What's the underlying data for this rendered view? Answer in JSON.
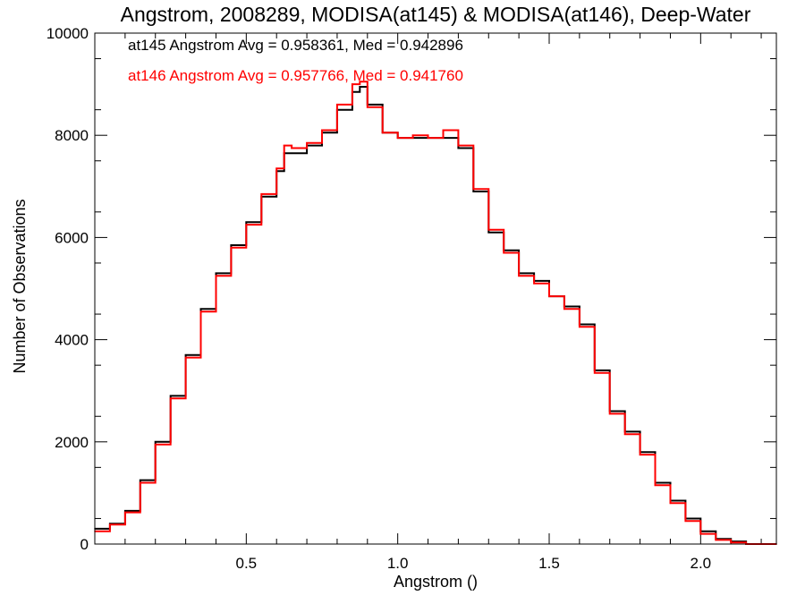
{
  "chart_data": {
    "type": "line",
    "step": true,
    "title": "Angstrom, 2008289, MODISA(at145) & MODISA(at146), Deep-Water",
    "xlabel": "Angstrom ()",
    "ylabel": "Number of Observations",
    "xlim": [
      0.0,
      2.25
    ],
    "ylim": [
      0,
      10000
    ],
    "x_ticks": [
      0.5,
      1.0,
      1.5,
      2.0
    ],
    "x_tick_labels": [
      "0.5",
      "1.0",
      "1.5",
      "2.0"
    ],
    "y_ticks": [
      0,
      2000,
      4000,
      6000,
      8000,
      10000
    ],
    "y_tick_labels": [
      "0",
      "2000",
      "4000",
      "6000",
      "8000",
      "10000"
    ],
    "grid": false,
    "annotations": [
      {
        "text": "at145 Angstrom Avg = 0.958361, Med = 0.942896",
        "color": "#000000"
      },
      {
        "text": "at146 Angstrom Avg = 0.957766, Med = 0.941760",
        "color": "#ff0000"
      }
    ],
    "series": [
      {
        "color": "#000000",
        "x": [
          0.0,
          0.05,
          0.1,
          0.15,
          0.2,
          0.25,
          0.3,
          0.35,
          0.4,
          0.45,
          0.5,
          0.55,
          0.6,
          0.625,
          0.65,
          0.7,
          0.75,
          0.8,
          0.85,
          0.875,
          0.9,
          0.95,
          1.0,
          1.05,
          1.1,
          1.15,
          1.2,
          1.25,
          1.3,
          1.35,
          1.4,
          1.45,
          1.5,
          1.55,
          1.6,
          1.65,
          1.7,
          1.75,
          1.8,
          1.85,
          1.9,
          1.95,
          2.0,
          2.05,
          2.1,
          2.15,
          2.2,
          2.25
        ],
        "values": [
          300,
          400,
          650,
          1250,
          2000,
          2900,
          3700,
          4600,
          5300,
          5850,
          6300,
          6800,
          7300,
          7650,
          7650,
          7800,
          8050,
          8500,
          8850,
          8950,
          8600,
          8050,
          7950,
          7950,
          7950,
          7950,
          7750,
          6900,
          6100,
          5750,
          5300,
          5150,
          4850,
          4650,
          4300,
          3400,
          2600,
          2200,
          1800,
          1200,
          850,
          500,
          250,
          100,
          50,
          0,
          0,
          0
        ]
      },
      {
        "color": "#ff0000",
        "x": [
          0.0,
          0.05,
          0.1,
          0.15,
          0.2,
          0.25,
          0.3,
          0.35,
          0.4,
          0.45,
          0.5,
          0.55,
          0.6,
          0.625,
          0.65,
          0.7,
          0.75,
          0.8,
          0.85,
          0.875,
          0.9,
          0.95,
          1.0,
          1.05,
          1.1,
          1.15,
          1.2,
          1.25,
          1.3,
          1.35,
          1.4,
          1.45,
          1.5,
          1.55,
          1.6,
          1.65,
          1.7,
          1.75,
          1.8,
          1.85,
          1.9,
          1.95,
          2.0,
          2.05,
          2.1,
          2.15,
          2.2,
          2.25
        ],
        "values": [
          250,
          380,
          620,
          1200,
          1950,
          2850,
          3650,
          4550,
          5250,
          5800,
          6250,
          6850,
          7350,
          7800,
          7750,
          7850,
          8100,
          8600,
          9000,
          9050,
          8550,
          8050,
          7950,
          8000,
          7950,
          8100,
          7800,
          6950,
          6150,
          5700,
          5250,
          5100,
          4850,
          4600,
          4250,
          3350,
          2550,
          2150,
          1750,
          1150,
          800,
          450,
          200,
          80,
          30,
          0,
          0,
          0
        ]
      }
    ]
  }
}
